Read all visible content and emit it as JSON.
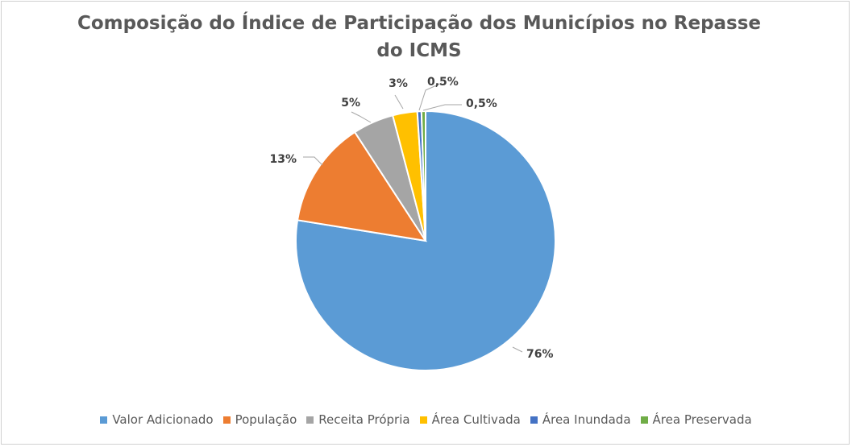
{
  "chart_data": {
    "type": "pie",
    "title_line1": "Composição do Índice de Participação dos Municípios no Repasse",
    "title_line2": "do ICMS",
    "categories": [
      "Valor Adicionado",
      "População",
      "Receita Própria",
      "Área Cultivada",
      "Área Inundada",
      "Área Preservada"
    ],
    "values": [
      76,
      13,
      5,
      3,
      0.5,
      0.5
    ],
    "data_labels": [
      "76%",
      "13%",
      "5%",
      "3%",
      "0,5%",
      "0,5%"
    ],
    "colors": [
      "#5b9bd5",
      "#ed7d31",
      "#a5a5a5",
      "#ffc000",
      "#4472c4",
      "#70ad47"
    ],
    "legend_position": "bottom"
  }
}
